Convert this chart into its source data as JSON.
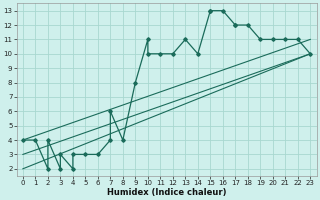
{
  "xlabel": "Humidex (Indice chaleur)",
  "bg_color": "#cff0ec",
  "grid_color": "#a8d8d0",
  "line_color": "#1a6b5a",
  "xlim": [
    -0.5,
    23.5
  ],
  "ylim": [
    1.5,
    13.5
  ],
  "xticks": [
    0,
    1,
    2,
    3,
    4,
    5,
    6,
    7,
    8,
    9,
    10,
    11,
    12,
    13,
    14,
    15,
    16,
    17,
    18,
    19,
    20,
    21,
    22,
    23
  ],
  "yticks": [
    2,
    3,
    4,
    5,
    6,
    7,
    8,
    9,
    10,
    11,
    12,
    13
  ],
  "main_x": [
    0,
    1,
    2,
    2,
    3,
    3,
    4,
    4,
    5,
    6,
    7,
    7,
    8,
    9,
    10,
    10,
    11,
    12,
    13,
    14,
    15,
    15,
    16,
    17,
    17,
    18,
    19,
    20,
    21,
    22,
    23
  ],
  "main_y": [
    4,
    4,
    2,
    4,
    2,
    3,
    2,
    3,
    3,
    3,
    4,
    6,
    4,
    8,
    11,
    10,
    10,
    10,
    11,
    10,
    13,
    13,
    13,
    12,
    12,
    12,
    11,
    11,
    11,
    11,
    10
  ],
  "trend1_x": [
    0,
    23
  ],
  "trend1_y": [
    4,
    11
  ],
  "trend2_x": [
    0,
    23
  ],
  "trend2_y": [
    2,
    10
  ],
  "trend3_x": [
    0,
    23
  ],
  "trend3_y": [
    3,
    10
  ]
}
